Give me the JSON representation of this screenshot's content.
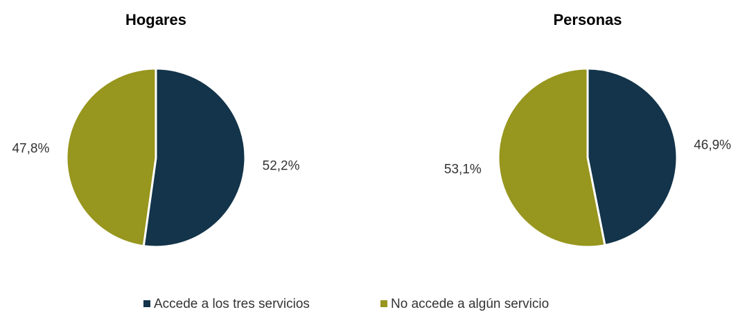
{
  "chart_data": [
    {
      "type": "pie",
      "title": "Hogares",
      "categories": [
        "Accede a los tres servicios",
        "No accede a algún servicio"
      ],
      "values": [
        52.2,
        47.8
      ],
      "value_labels": [
        "52,2%",
        "47,8%"
      ],
      "colors": [
        "#13344a",
        "#97961e"
      ]
    },
    {
      "type": "pie",
      "title": "Personas",
      "categories": [
        "Accede a los tres servicios",
        "No accede a algún servicio"
      ],
      "values": [
        46.9,
        53.1
      ],
      "value_labels": [
        "46,9%",
        "53,1%"
      ],
      "colors": [
        "#13344a",
        "#97961e"
      ]
    }
  ]
}
